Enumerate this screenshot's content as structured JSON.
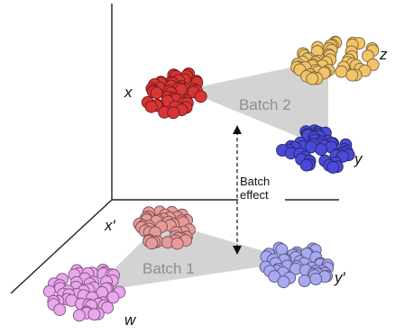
{
  "labels": {
    "x": "x",
    "y": "y",
    "z": "z",
    "x_prime": "x′",
    "y_prime": "y′",
    "w": "w",
    "batch2": "Batch 2",
    "batch1": "Batch 1",
    "batch_effect_line1": "Batch",
    "batch_effect_line2": "effect"
  },
  "colors": {
    "axis": "#222222",
    "triangle": "#d3d3d3",
    "cluster_x": "#d93535",
    "cluster_z": "#f2c46a",
    "cluster_y": "#4a4ad6",
    "cluster_x_prime": "#e89a9a",
    "cluster_y_prime": "#a9a9f2",
    "cluster_w": "#eba6ee"
  }
}
